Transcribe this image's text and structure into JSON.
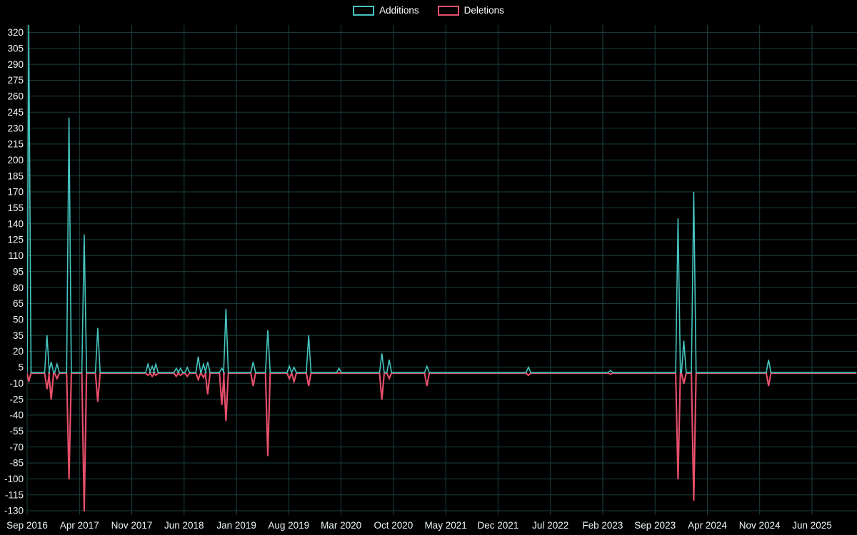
{
  "legend": {
    "additions": "Additions",
    "deletions": "Deletions"
  },
  "colors": {
    "background": "#000000",
    "grid": "#1a4040",
    "axis_text": "#eef7f7",
    "additions": "#46c5c0",
    "deletions": "#e8506b"
  },
  "chart_data": {
    "type": "line",
    "title": "",
    "xlabel": "",
    "ylabel": "",
    "grid": true,
    "legend_position": "top-center",
    "series_names": [
      "Additions",
      "Deletions"
    ],
    "x_tick_labels": [
      "Sep 2016",
      "Apr 2017",
      "Nov 2017",
      "Jun 2018",
      "Jan 2019",
      "Aug 2019",
      "Mar 2020",
      "Oct 2020",
      "May 2021",
      "Dec 2021",
      "Jul 2022",
      "Feb 2023",
      "Sep 2023",
      "Apr 2024",
      "Nov 2024",
      "Jun 2025"
    ],
    "x_tick_interval_months": 7,
    "y_ticks": [
      320,
      305,
      290,
      275,
      260,
      245,
      230,
      215,
      200,
      185,
      170,
      155,
      140,
      125,
      110,
      95,
      80,
      65,
      50,
      35,
      20,
      5,
      -10,
      -25,
      -40,
      -55,
      -70,
      -85,
      -100,
      -115,
      -130
    ],
    "ylim": [
      -134,
      327
    ],
    "t_end": 15.85,
    "baseline_value": 0,
    "events_note": "t is in x-tick intervals from Sep 2016; a = Additions peak, d = Deletions trough; series are 0 elsewhere",
    "events": [
      {
        "t": 0.03,
        "a": 330,
        "d": -8
      },
      {
        "t": 0.38,
        "a": 35,
        "d": -15
      },
      {
        "t": 0.46,
        "a": 10,
        "d": -25
      },
      {
        "t": 0.57,
        "a": 8,
        "d": -5
      },
      {
        "t": 0.8,
        "a": 240,
        "d": -100
      },
      {
        "t": 1.09,
        "a": 130,
        "d": -130
      },
      {
        "t": 1.35,
        "a": 42,
        "d": -27
      },
      {
        "t": 2.31,
        "a": 8,
        "d": -2
      },
      {
        "t": 2.39,
        "a": 6,
        "d": -3
      },
      {
        "t": 2.46,
        "a": 8,
        "d": -2
      },
      {
        "t": 2.85,
        "a": 4,
        "d": -3
      },
      {
        "t": 2.93,
        "a": 4,
        "d": -2
      },
      {
        "t": 3.06,
        "a": 5,
        "d": -3
      },
      {
        "t": 3.27,
        "a": 15,
        "d": -6
      },
      {
        "t": 3.37,
        "a": 8,
        "d": -4
      },
      {
        "t": 3.45,
        "a": 10,
        "d": -20
      },
      {
        "t": 3.72,
        "a": 4,
        "d": -30
      },
      {
        "t": 3.8,
        "a": 60,
        "d": -45
      },
      {
        "t": 4.32,
        "a": 10,
        "d": -12
      },
      {
        "t": 4.6,
        "a": 40,
        "d": -78
      },
      {
        "t": 5.01,
        "a": 6,
        "d": -5
      },
      {
        "t": 5.1,
        "a": 5,
        "d": -8
      },
      {
        "t": 5.38,
        "a": 35,
        "d": -12
      },
      {
        "t": 5.96,
        "a": 4,
        "d": 0
      },
      {
        "t": 6.78,
        "a": 18,
        "d": -25
      },
      {
        "t": 6.92,
        "a": 12,
        "d": -5
      },
      {
        "t": 7.64,
        "a": 6,
        "d": -12
      },
      {
        "t": 9.58,
        "a": 5,
        "d": -2
      },
      {
        "t": 11.15,
        "a": 2,
        "d": -1
      },
      {
        "t": 12.44,
        "a": 145,
        "d": -100
      },
      {
        "t": 12.55,
        "a": 30,
        "d": -10
      },
      {
        "t": 12.74,
        "a": 170,
        "d": -120
      },
      {
        "t": 14.17,
        "a": 12,
        "d": -12
      }
    ]
  }
}
